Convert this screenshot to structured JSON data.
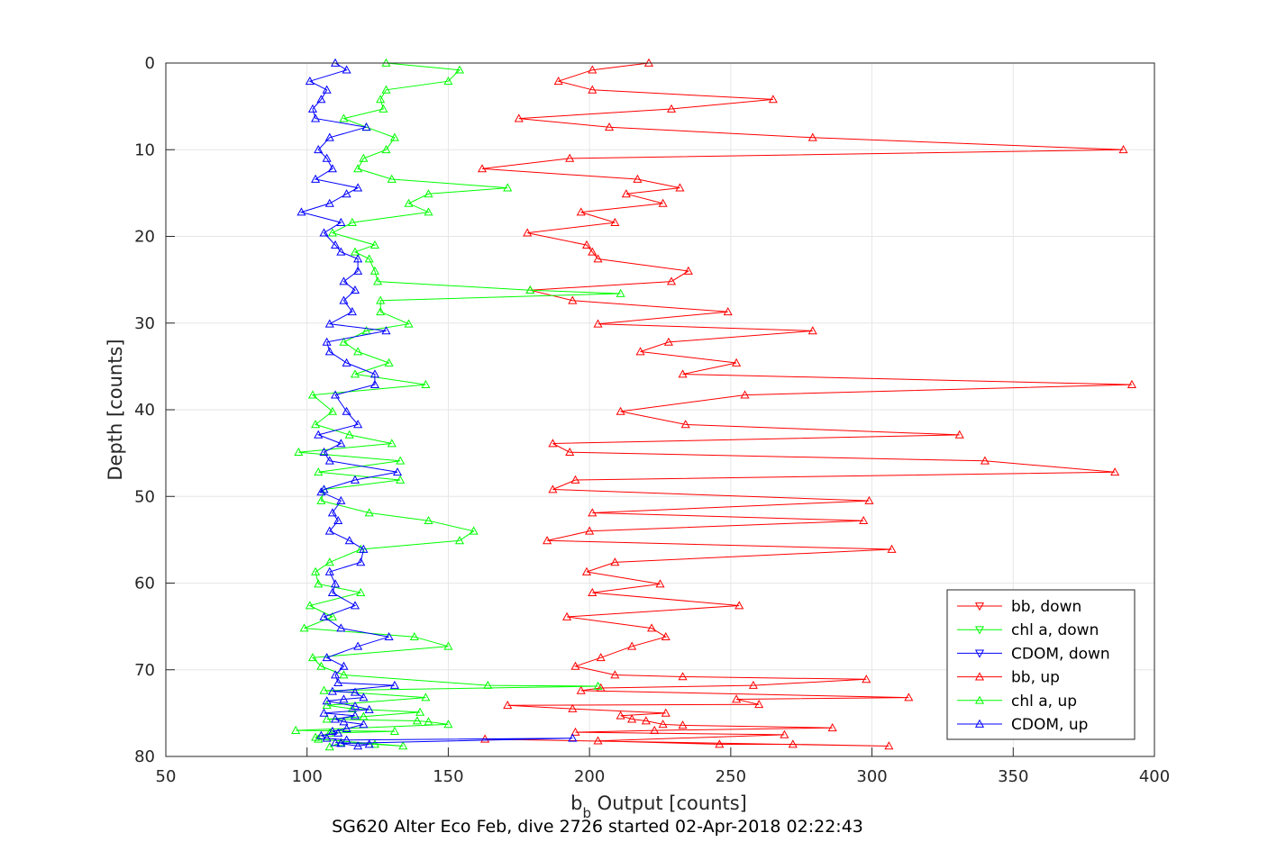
{
  "chart_data": {
    "type": "line",
    "title": "",
    "caption": "SG620 Alter Eco Feb, dive 2726 started 02-Apr-2018 02:22:43",
    "xlabel": "b",
    "xlabel_sub": "b",
    "xlabel_rest": " Output [counts]",
    "ylabel": "Depth [counts]",
    "xlim": [
      50,
      400
    ],
    "ylim": [
      0,
      80
    ],
    "y_reversed": true,
    "grid": true,
    "legend_position": "bottom-right",
    "x_ticks": [
      "50",
      "100",
      "150",
      "200",
      "250",
      "300",
      "350",
      "400"
    ],
    "y_ticks": [
      "0",
      "10",
      "20",
      "30",
      "40",
      "50",
      "60",
      "70",
      "80"
    ],
    "series": [
      {
        "name": "bb, down",
        "color": "#ff0000",
        "marker": "triangle-down",
        "points": []
      },
      {
        "name": "chl a, down",
        "color": "#00ff00",
        "marker": "triangle-down",
        "points": []
      },
      {
        "name": "CDOM, down",
        "color": "#0000ff",
        "marker": "triangle-down",
        "points": []
      },
      {
        "name": "bb, up",
        "color": "#ff0000",
        "marker": "triangle-up",
        "points": [
          [
            221,
            0
          ],
          [
            201,
            0.8
          ],
          [
            189,
            2.1
          ],
          [
            201,
            3.1
          ],
          [
            265,
            4.2
          ],
          [
            229,
            5.3
          ],
          [
            175,
            6.4
          ],
          [
            207,
            7.4
          ],
          [
            279,
            8.6
          ],
          [
            389,
            10
          ],
          [
            193,
            11
          ],
          [
            162,
            12.2
          ],
          [
            217,
            13.4
          ],
          [
            232,
            14.4
          ],
          [
            213,
            15.1
          ],
          [
            226,
            16.2
          ],
          [
            197,
            17.2
          ],
          [
            209,
            18.4
          ],
          [
            178,
            19.6
          ],
          [
            199,
            21
          ],
          [
            201,
            21.8
          ],
          [
            203,
            22.6
          ],
          [
            235,
            24
          ],
          [
            229,
            25.2
          ],
          [
            179,
            26.2
          ],
          [
            194,
            27.4
          ],
          [
            249,
            28.7
          ],
          [
            203,
            30.1
          ],
          [
            279,
            30.9
          ],
          [
            228,
            32.2
          ],
          [
            218,
            33.3
          ],
          [
            252,
            34.6
          ],
          [
            233,
            35.9
          ],
          [
            392,
            37.1
          ],
          [
            255,
            38.3
          ],
          [
            211,
            40.2
          ],
          [
            234,
            41.7
          ],
          [
            331,
            42.9
          ],
          [
            187,
            43.9
          ],
          [
            193,
            44.9
          ],
          [
            340,
            45.9
          ],
          [
            386,
            47.2
          ],
          [
            195,
            48.1
          ],
          [
            187,
            49.2
          ],
          [
            299,
            50.5
          ],
          [
            201,
            51.9
          ],
          [
            297,
            52.8
          ],
          [
            200,
            54
          ],
          [
            185,
            55.1
          ],
          [
            307,
            56.1
          ],
          [
            209,
            57.6
          ],
          [
            199,
            58.7
          ],
          [
            225,
            60.1
          ],
          [
            201,
            61.1
          ],
          [
            253,
            62.6
          ],
          [
            192,
            63.9
          ],
          [
            222,
            65.2
          ],
          [
            227,
            66.2
          ],
          [
            215,
            67.3
          ],
          [
            204,
            68.6
          ],
          [
            195,
            69.6
          ],
          [
            209,
            70.6
          ],
          [
            233,
            70.8
          ],
          [
            298,
            71.1
          ],
          [
            258,
            71.8
          ],
          [
            204,
            72.1
          ],
          [
            197,
            72.4
          ],
          [
            313,
            73.2
          ],
          [
            252,
            73.4
          ],
          [
            260,
            74
          ],
          [
            171,
            74.1
          ],
          [
            194,
            74.5
          ],
          [
            227,
            75
          ],
          [
            211,
            75.3
          ],
          [
            215,
            75.7
          ],
          [
            220,
            75.9
          ],
          [
            226,
            76.3
          ],
          [
            233,
            76.4
          ],
          [
            286,
            76.7
          ],
          [
            223,
            77
          ],
          [
            195,
            77.2
          ],
          [
            269,
            77.5
          ],
          [
            203,
            78.2
          ],
          [
            246,
            78.6
          ],
          [
            272,
            78.6
          ],
          [
            306,
            78.8
          ],
          [
            163,
            78
          ]
        ]
      },
      {
        "name": "chl a, up",
        "color": "#00ff00",
        "marker": "triangle-up",
        "points": [
          [
            128,
            0
          ],
          [
            154,
            0.8
          ],
          [
            150,
            2.1
          ],
          [
            128,
            3.1
          ],
          [
            126,
            4.2
          ],
          [
            127,
            5.3
          ],
          [
            113,
            6.4
          ],
          [
            121,
            7.4
          ],
          [
            131,
            8.6
          ],
          [
            128,
            10
          ],
          [
            120,
            11
          ],
          [
            118,
            12.2
          ],
          [
            130,
            13.4
          ],
          [
            171,
            14.4
          ],
          [
            143,
            15.1
          ],
          [
            136,
            16.2
          ],
          [
            143,
            17.2
          ],
          [
            116,
            18.4
          ],
          [
            109,
            19.6
          ],
          [
            124,
            21
          ],
          [
            117,
            21.8
          ],
          [
            122,
            22.6
          ],
          [
            124,
            24
          ],
          [
            125,
            25.2
          ],
          [
            179,
            26.2
          ],
          [
            211,
            26.6
          ],
          [
            126,
            27.4
          ],
          [
            126,
            28.7
          ],
          [
            136,
            30.1
          ],
          [
            121,
            30.9
          ],
          [
            113,
            32.2
          ],
          [
            118,
            33.3
          ],
          [
            129,
            34.6
          ],
          [
            117,
            35.9
          ],
          [
            142,
            37.1
          ],
          [
            102,
            38.3
          ],
          [
            109,
            40.2
          ],
          [
            103,
            41.7
          ],
          [
            115,
            42.9
          ],
          [
            130,
            43.9
          ],
          [
            97,
            44.9
          ],
          [
            133,
            45.9
          ],
          [
            104,
            47.2
          ],
          [
            133,
            48.1
          ],
          [
            106,
            49.2
          ],
          [
            105,
            50.5
          ],
          [
            122,
            51.9
          ],
          [
            143,
            52.8
          ],
          [
            159,
            54
          ],
          [
            154,
            55.1
          ],
          [
            119,
            56.1
          ],
          [
            108,
            57.6
          ],
          [
            103,
            58.7
          ],
          [
            104,
            60.1
          ],
          [
            119,
            61.1
          ],
          [
            101,
            62.6
          ],
          [
            109,
            63.9
          ],
          [
            99,
            65.2
          ],
          [
            138,
            66.2
          ],
          [
            150,
            67.3
          ],
          [
            102,
            68.6
          ],
          [
            105,
            69.6
          ],
          [
            113,
            70.6
          ],
          [
            164,
            71.8
          ],
          [
            203,
            71.9
          ],
          [
            106,
            72.4
          ],
          [
            142,
            73.2
          ],
          [
            107,
            74.1
          ],
          [
            116,
            74.5
          ],
          [
            140,
            74.9
          ],
          [
            120,
            75.4
          ],
          [
            107,
            75.7
          ],
          [
            139,
            75.9
          ],
          [
            143,
            76
          ],
          [
            150,
            76.3
          ],
          [
            96,
            77
          ],
          [
            131,
            77.1
          ],
          [
            108,
            77.3
          ],
          [
            103,
            77.8
          ],
          [
            104,
            78
          ],
          [
            134,
            78.8
          ],
          [
            124,
            78.6
          ],
          [
            112,
            78.4
          ],
          [
            108,
            78.9
          ]
        ]
      },
      {
        "name": "CDOM, up",
        "color": "#0000ff",
        "marker": "triangle-up",
        "points": [
          [
            110,
            0
          ],
          [
            114,
            0.8
          ],
          [
            101,
            2.1
          ],
          [
            107,
            3.1
          ],
          [
            105,
            4.2
          ],
          [
            102,
            5.3
          ],
          [
            103,
            6.4
          ],
          [
            121,
            7.4
          ],
          [
            108,
            8.6
          ],
          [
            104,
            10
          ],
          [
            107,
            11
          ],
          [
            109,
            12.2
          ],
          [
            103,
            13.4
          ],
          [
            118,
            14.4
          ],
          [
            114,
            15.1
          ],
          [
            108,
            16.2
          ],
          [
            98,
            17.2
          ],
          [
            112,
            18.4
          ],
          [
            106,
            19.6
          ],
          [
            110,
            21
          ],
          [
            112,
            21.8
          ],
          [
            118,
            22.6
          ],
          [
            118,
            24
          ],
          [
            113,
            25.2
          ],
          [
            117,
            26.2
          ],
          [
            113,
            27.4
          ],
          [
            116,
            28.7
          ],
          [
            108,
            30.1
          ],
          [
            128,
            30.9
          ],
          [
            107,
            32.2
          ],
          [
            108,
            33.3
          ],
          [
            114,
            34.6
          ],
          [
            124,
            35.9
          ],
          [
            124,
            37.1
          ],
          [
            110,
            38.3
          ],
          [
            114,
            40.2
          ],
          [
            118,
            41.7
          ],
          [
            104,
            42.9
          ],
          [
            112,
            43.9
          ],
          [
            106,
            44.9
          ],
          [
            108,
            45.9
          ],
          [
            132,
            47.2
          ],
          [
            117,
            48.1
          ],
          [
            106,
            49.2
          ],
          [
            105,
            49.5
          ],
          [
            112,
            50.5
          ],
          [
            109,
            51.9
          ],
          [
            111,
            52.8
          ],
          [
            108,
            54
          ],
          [
            115,
            55.1
          ],
          [
            120,
            56.1
          ],
          [
            119,
            57.6
          ],
          [
            108,
            58.7
          ],
          [
            110,
            60.1
          ],
          [
            109,
            61.1
          ],
          [
            117,
            62.6
          ],
          [
            106,
            63.9
          ],
          [
            112,
            65.2
          ],
          [
            129,
            66.2
          ],
          [
            118,
            67.3
          ],
          [
            107,
            68.6
          ],
          [
            113,
            69.6
          ],
          [
            110,
            70.6
          ],
          [
            111,
            71.5
          ],
          [
            131,
            71.8
          ],
          [
            109,
            72.5
          ],
          [
            117,
            72.6
          ],
          [
            120,
            73.2
          ],
          [
            113,
            73.4
          ],
          [
            107,
            73.6
          ],
          [
            117,
            74.2
          ],
          [
            122,
            74.6
          ],
          [
            106,
            75
          ],
          [
            117,
            75.3
          ],
          [
            110,
            75.7
          ],
          [
            113,
            76
          ],
          [
            120,
            76.3
          ],
          [
            114,
            76.8
          ],
          [
            109,
            77.1
          ],
          [
            111,
            77.3
          ],
          [
            105,
            77.6
          ],
          [
            107,
            77.9
          ],
          [
            114,
            78.1
          ],
          [
            194,
            77.9
          ],
          [
            112,
            78.5
          ],
          [
            118,
            78.8
          ],
          [
            122,
            78.6
          ],
          [
            110,
            78.4
          ]
        ]
      }
    ]
  }
}
